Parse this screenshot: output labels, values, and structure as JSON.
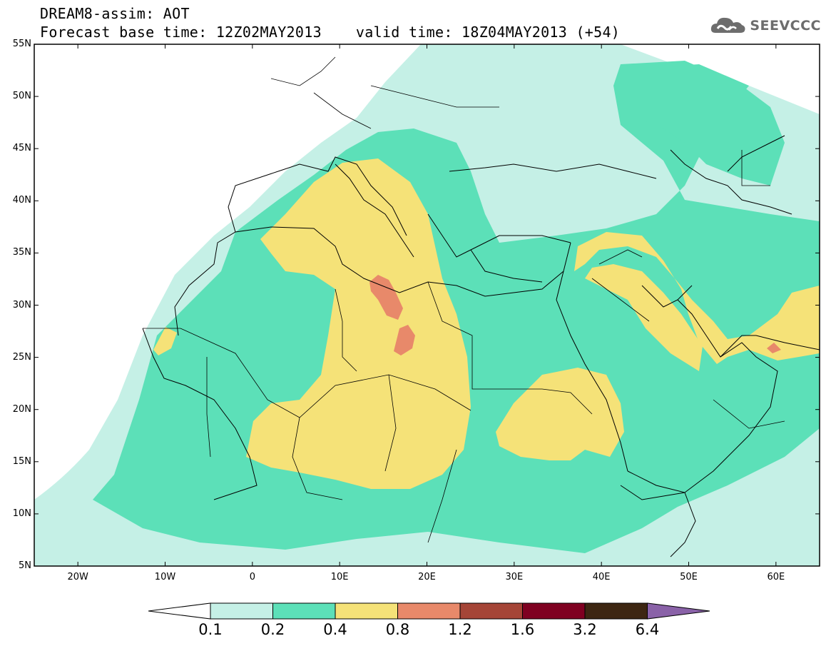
{
  "title_line1": "DREAM8-assim: AOT",
  "title_base": "Forecast base time: 12Z02MAY2013",
  "title_valid": "valid time: 18Z04MAY2013 (+54)",
  "logo_text": "SEEVCCC",
  "lat_labels": [
    "55N",
    "50N",
    "45N",
    "40N",
    "35N",
    "30N",
    "25N",
    "20N",
    "15N",
    "10N",
    "5N"
  ],
  "lon_labels": [
    "20W",
    "10W",
    "0",
    "10E",
    "20E",
    "30E",
    "40E",
    "50E",
    "60E"
  ],
  "legend": {
    "levels": [
      "0.1",
      "0.2",
      "0.4",
      "0.8",
      "1.2",
      "1.6",
      "3.2",
      "6.4"
    ],
    "colors": [
      "#ffffff",
      "#c5f0e6",
      "#5ce0b8",
      "#f5e278",
      "#e8896a",
      "#a54537",
      "#7f0021",
      "#3d2612",
      "#8a62a8"
    ]
  }
}
